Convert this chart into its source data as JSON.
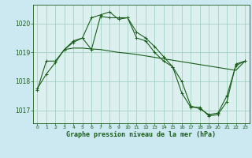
{
  "background_color": "#cce8f0",
  "plot_bg_color": "#ddf0f0",
  "grid_color": "#99ccbb",
  "line_color": "#1a5e1a",
  "title": "Graphe pression niveau de la mer (hPa)",
  "ylim": [
    1016.55,
    1020.65
  ],
  "yticks": [
    1017,
    1018,
    1019,
    1020
  ],
  "xticks": [
    0,
    1,
    2,
    3,
    4,
    5,
    6,
    7,
    8,
    9,
    10,
    11,
    12,
    13,
    14,
    15,
    16,
    17,
    18,
    19,
    20,
    21,
    22,
    23
  ],
  "series1_x": [
    0,
    1,
    2,
    3,
    4,
    5,
    6,
    7,
    8,
    9,
    10,
    11,
    12,
    13,
    14,
    15,
    16,
    17,
    18,
    19,
    20,
    21,
    22,
    23
  ],
  "series1_y": [
    1017.7,
    1018.7,
    1018.7,
    1019.1,
    1019.4,
    1019.5,
    1019.1,
    1020.25,
    1020.2,
    1020.2,
    1020.2,
    1019.5,
    1019.4,
    1019.0,
    1018.7,
    1018.5,
    1017.6,
    1017.1,
    1017.1,
    1016.8,
    1016.85,
    1017.3,
    1018.6,
    1018.7
  ],
  "series2_x": [
    0,
    1,
    2,
    3,
    4,
    5,
    6,
    7,
    8,
    9,
    10,
    11,
    12,
    13,
    14,
    15,
    16,
    17,
    18,
    19,
    20,
    21,
    22,
    23
  ],
  "series2_y": [
    1017.75,
    1018.25,
    1018.65,
    1019.1,
    1019.35,
    1019.5,
    1020.2,
    1020.3,
    1020.4,
    1020.15,
    1020.2,
    1019.7,
    1019.5,
    1019.2,
    1018.85,
    1018.5,
    1018.0,
    1017.15,
    1017.05,
    1016.85,
    1016.9,
    1017.5,
    1018.55,
    1018.7
  ],
  "series3_x": [
    3,
    4,
    5,
    6,
    7,
    8,
    9,
    10,
    11,
    12,
    13,
    14,
    15,
    16,
    17,
    18,
    19,
    20,
    21,
    22,
    23
  ],
  "series3_y": [
    1019.1,
    1019.15,
    1019.15,
    1019.12,
    1019.1,
    1019.05,
    1019.0,
    1018.97,
    1018.93,
    1018.88,
    1018.83,
    1018.78,
    1018.73,
    1018.68,
    1018.63,
    1018.58,
    1018.53,
    1018.48,
    1018.43,
    1018.38,
    1018.7
  ]
}
